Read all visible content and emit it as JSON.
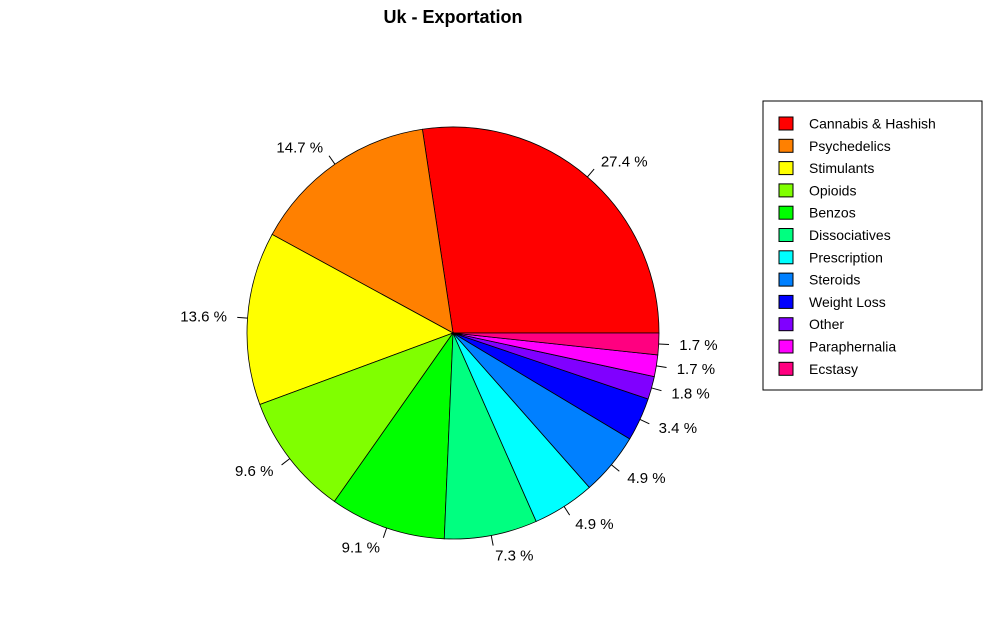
{
  "chart_data": {
    "type": "pie",
    "title": "Uk - Exportation",
    "legend_position": "right",
    "start_angle": "3 o'clock, counter-clockwise",
    "slices": [
      {
        "label": "Cannabis & Hashish",
        "value": 27.4,
        "value_label": "27.4 %",
        "color": "#FF0000"
      },
      {
        "label": "Psychedelics",
        "value": 14.7,
        "value_label": "14.7 %",
        "color": "#FF8000"
      },
      {
        "label": "Stimulants",
        "value": 13.6,
        "value_label": "13.6 %",
        "color": "#FFFF00"
      },
      {
        "label": "Opioids",
        "value": 9.6,
        "value_label": "9.6 %",
        "color": "#80FF00"
      },
      {
        "label": "Benzos",
        "value": 9.1,
        "value_label": "9.1 %",
        "color": "#00FF00"
      },
      {
        "label": "Dissociatives",
        "value": 7.3,
        "value_label": "7.3 %",
        "color": "#00FF80"
      },
      {
        "label": "Prescription",
        "value": 4.9,
        "value_label": "4.9 %",
        "color": "#00FFFF"
      },
      {
        "label": "Steroids",
        "value": 4.9,
        "value_label": "4.9 %",
        "color": "#0080FF"
      },
      {
        "label": "Weight Loss",
        "value": 3.4,
        "value_label": "3.4 %",
        "color": "#0000FF"
      },
      {
        "label": "Other",
        "value": 1.8,
        "value_label": "1.8 %",
        "color": "#8000FF"
      },
      {
        "label": "Paraphernalia",
        "value": 1.7,
        "value_label": "1.7 %",
        "color": "#FF00FF"
      },
      {
        "label": "Ecstasy",
        "value": 1.7,
        "value_label": "1.7 %",
        "color": "#FF0080"
      }
    ]
  }
}
